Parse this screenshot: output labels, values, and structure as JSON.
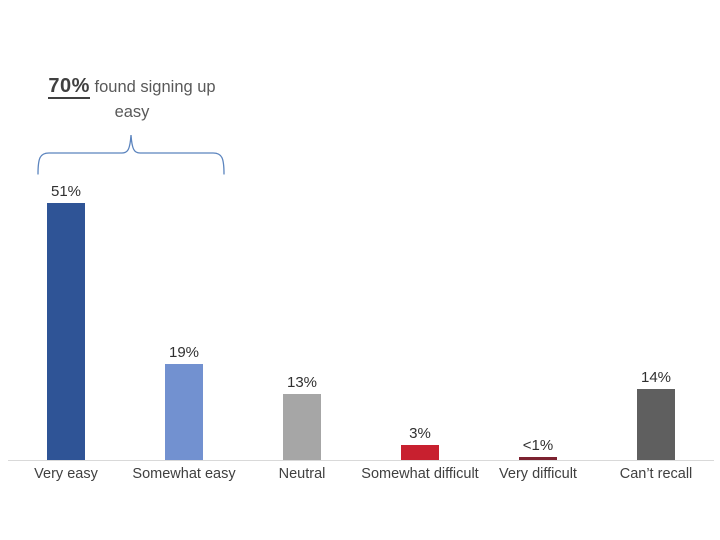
{
  "annotation": {
    "stat": "70%",
    "text": " found signing up easy",
    "stat_color": "#404040",
    "text_color": "#595959",
    "brace_color": "#5B84BE",
    "spans_categories": [
      "Very easy",
      "Somewhat easy"
    ]
  },
  "chart_data": {
    "type": "bar",
    "title": "70% found signing up easy",
    "categories": [
      "Very easy",
      "Somewhat easy",
      "Neutral",
      "Somewhat difficult",
      "Very difficult",
      "Can’t recall"
    ],
    "values": [
      51,
      19,
      13,
      3,
      0.5,
      14
    ],
    "value_labels": [
      "51%",
      "19%",
      "13%",
      "3%",
      "<1%",
      "14%"
    ],
    "bar_colors": [
      "#2F5496",
      "#7291D0",
      "#A6A6A6",
      "#C8202F",
      "#7C2230",
      "#5F5F5F"
    ],
    "xlabel": "",
    "ylabel": "",
    "ylim": [
      0,
      55
    ],
    "gridlines": false,
    "y_axis_visible": false,
    "x_axis_line_color": "#D9D9D9",
    "legend": "none",
    "value_label_color": "#303030",
    "category_label_color": "#404040"
  }
}
